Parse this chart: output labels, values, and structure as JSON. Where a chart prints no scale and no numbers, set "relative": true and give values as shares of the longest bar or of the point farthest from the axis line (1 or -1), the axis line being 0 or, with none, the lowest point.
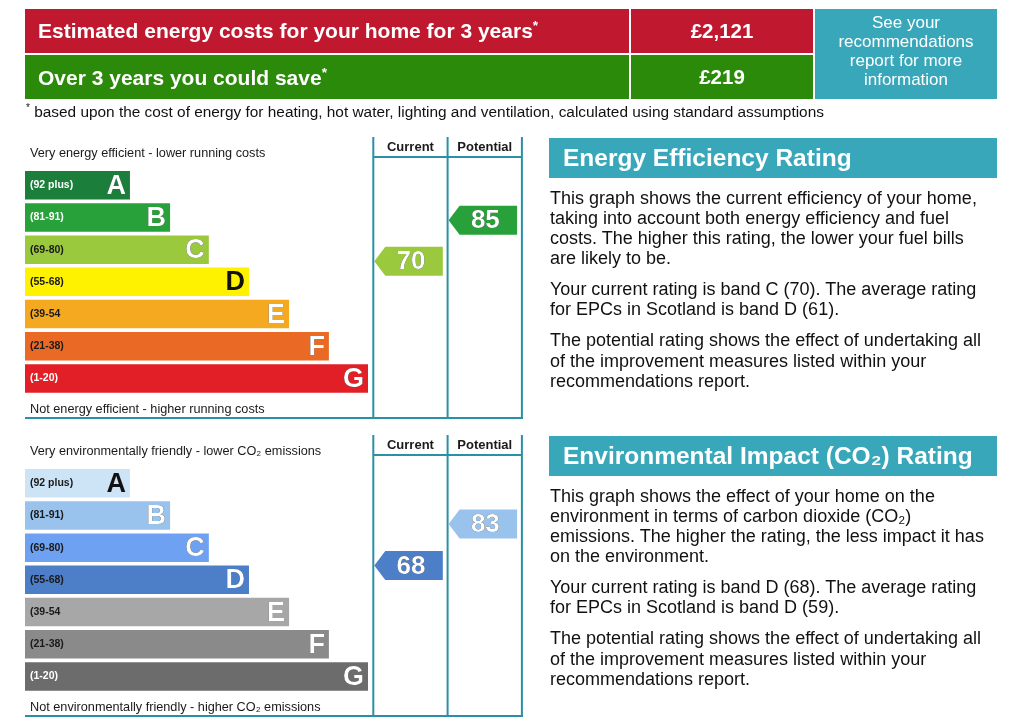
{
  "chart_data": [
    {
      "type": "other",
      "categories": [
        "Estimated energy costs for your home for 3 years$^{*}$",
        "Over 3 years you could save$^{*}$"
      ],
      "value_labels": [
        "£2,121",
        "£219"
      ],
      "colors": [
        "#c0192f",
        "#2b8a0a"
      ],
      "annotations": [
        "See your recommendations report for more information",
        "$^{*}$ based upon the cost of energy for heating, hot water, lighting and ventilation, calculated using standard assumptions"
      ]
    },
    {
      "type": "bar",
      "orientation": "horizontal",
      "relative": true,
      "categories": [
        "(92 plus)",
        "(81-91)",
        "(69-80)",
        "(55-68)",
        "(39-54",
        "(21-38)",
        "(1-20)"
      ],
      "y2_categories": [
        "A",
        "B",
        "C",
        "D",
        "E",
        "F",
        "G"
      ],
      "values": [
        0.306,
        0.423,
        0.536,
        0.653,
        0.77,
        0.886,
        1
      ],
      "colors": [
        "#1b7f3b",
        "#28a13a",
        "#9ac93e",
        "#fef200",
        "#f5a920",
        "#ea6a25",
        "#e21e26"
      ],
      "annotations": [
        "Very energy efficient - lower running costs",
        "Not energy efficient - higher running costs"
      ]
    },
    {
      "type": "other",
      "categories": [
        "Current",
        "Potential"
      ],
      "values": [
        70,
        85
      ],
      "colors": [
        "#9ac93e",
        "#28a13a"
      ],
      "data_labels": true
    },
    {
      "type": "other",
      "title": "Energy Efficiency Rating",
      "annotations": [
        "This graph shows the current efficiency of your home, taking into account both energy efficiency and fuel costs. The higher this rating, the lower your fuel bills are likely to be.",
        "Your current rating is band C (70). The average rating for EPCs in Scotland is band D (61).",
        "The potential rating shows the effect of undertaking all of the improvement measures listed within your recommendations report."
      ]
    },
    {
      "type": "bar",
      "orientation": "horizontal",
      "relative": true,
      "categories": [
        "(92 plus)",
        "(81-91)",
        "(69-80)",
        "(55-68)",
        "(39-54",
        "(21-38)",
        "(1-20)"
      ],
      "y2_categories": [
        "A",
        "B",
        "C",
        "D",
        "E",
        "F",
        "G"
      ],
      "values": [
        0.306,
        0.423,
        0.536,
        0.653,
        0.77,
        0.886,
        1
      ],
      "colors": [
        "#cde3f6",
        "#99c3ec",
        "#6ea1f1",
        "#4d7ec8",
        "#a7a7a7",
        "#8a8a8a",
        "#6c6c6c"
      ],
      "annotations": [
        "Very environmentally friendly - lower CO₂ emissions",
        "Not environmentally friendly - higher CO₂ emissions"
      ]
    },
    {
      "type": "other",
      "categories": [
        "Current",
        "Potential"
      ],
      "values": [
        68,
        83
      ],
      "colors": [
        "#4d7ec8",
        "#99c3ec"
      ],
      "data_labels": true
    },
    {
      "type": "other",
      "title": "Environmental Impact (CO₂) Rating",
      "annotations": [
        "This graph shows the effect of your home on the environment in terms of carbon dioxide (CO₂) emissions. The higher the rating, the less impact it has on the environment.",
        "Your current rating is band D (68). The average rating for EPCs in Scotland is band D (59).",
        "The potential rating shows the effect of undertaking all of the improvement measures listed within your recommendations report."
      ]
    }
  ]
}
